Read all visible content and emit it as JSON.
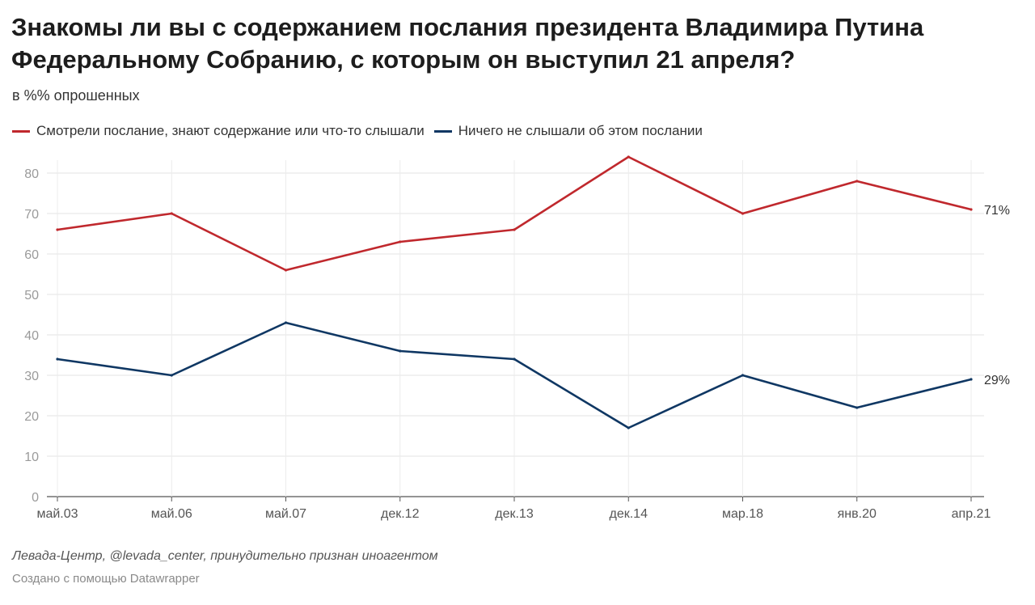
{
  "title_line1": "Знакомы ли вы с содержанием послания президента Владимира Путина",
  "title_line2": "Федеральному Собранию, с которым он выступил 21 апреля?",
  "subtitle": "в %% опрошенных",
  "source": "Левада-Центр, @levada_center, принудительно признан иноагентом",
  "credit": "Создано с помощью Datawrapper",
  "chart_data": {
    "type": "line",
    "categories": [
      "май.03",
      "май.06",
      "май.07",
      "дек.12",
      "дек.13",
      "дек.14",
      "мар.18",
      "янв.20",
      "апр.21"
    ],
    "ylim": [
      0,
      80
    ],
    "yticks": [
      0,
      10,
      20,
      30,
      40,
      50,
      60,
      70,
      80
    ],
    "grid": true,
    "legend_position": "top-left",
    "series": [
      {
        "name": "Смотрели послание, знают содержание или что-то слышали",
        "color": "#c0282d",
        "values": [
          66,
          70,
          56,
          63,
          66,
          84,
          70,
          78,
          71
        ],
        "end_label": "71%"
      },
      {
        "name": "Ничего не слышали об этом послании",
        "color": "#0f3763",
        "values": [
          34,
          30,
          43,
          36,
          34,
          17,
          30,
          22,
          29
        ],
        "end_label": "29%"
      }
    ]
  }
}
